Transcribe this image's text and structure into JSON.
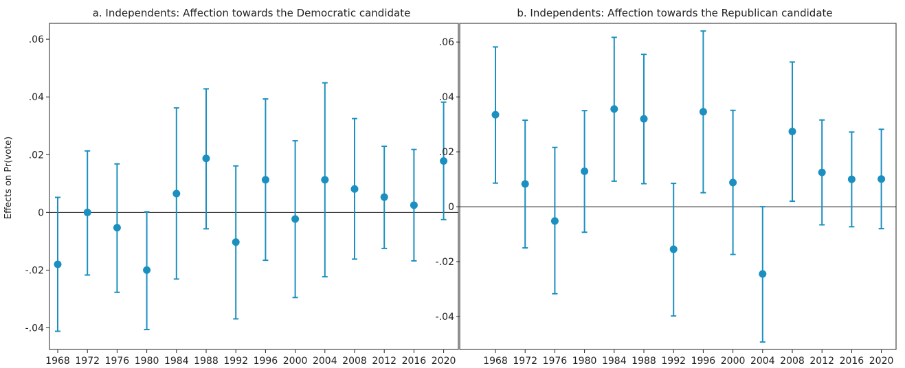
{
  "y_axis_label": "Effects on Pr(vote)",
  "chart_data": [
    {
      "type": "scatter",
      "title": "a. Independents: Affection towards the Democratic candidate",
      "xlabel": "",
      "ylabel": "Effects on Pr(vote)",
      "x": [
        "1968",
        "1972",
        "1976",
        "1980",
        "1984",
        "1988",
        "1992",
        "1996",
        "2000",
        "2004",
        "2008",
        "2012",
        "2016",
        "2020"
      ],
      "series": [
        {
          "values": [
            -0.018,
            0.0,
            -0.0053,
            -0.02,
            0.0065,
            0.0187,
            -0.0103,
            0.0113,
            -0.0023,
            0.0113,
            0.0081,
            0.0053,
            0.0025,
            0.0178
          ],
          "lower": [
            -0.0412,
            -0.0217,
            -0.0277,
            -0.0406,
            -0.0231,
            -0.0057,
            -0.0369,
            -0.0166,
            -0.0295,
            -0.0223,
            -0.0162,
            -0.0125,
            -0.0168,
            -0.0025
          ],
          "upper": [
            0.0052,
            0.0213,
            0.0168,
            0.0002,
            0.0362,
            0.0428,
            0.0161,
            0.0393,
            0.0248,
            0.0449,
            0.0325,
            0.0229,
            0.0218,
            0.0382
          ]
        }
      ],
      "ylim": [
        -0.0475,
        0.0655
      ],
      "yticks": [
        "-.04",
        "-.02",
        "0",
        ".02",
        ".04",
        ".06"
      ],
      "ytick_values": [
        -0.04,
        -0.02,
        0,
        0.02,
        0.04,
        0.06
      ],
      "reference_line": 0,
      "color": "#1b8fc0",
      "grid": false,
      "legend": "none"
    },
    {
      "type": "scatter",
      "title": "b. Independents: Affection towards the Republican candidate",
      "xlabel": "",
      "ylabel": "",
      "x": [
        "1968",
        "1972",
        "1976",
        "1980",
        "1984",
        "1988",
        "1992",
        "1996",
        "2000",
        "2004",
        "2008",
        "2012",
        "2016",
        "2020"
      ],
      "series": [
        {
          "values": [
            0.0335,
            0.0083,
            -0.0052,
            0.0129,
            0.0356,
            0.032,
            -0.0155,
            0.0346,
            0.0088,
            -0.0245,
            0.0274,
            0.0125,
            0.01,
            0.0101
          ],
          "lower": [
            0.0086,
            -0.015,
            -0.0317,
            -0.0093,
            0.0093,
            0.0084,
            -0.0398,
            0.0051,
            -0.0174,
            -0.0493,
            0.002,
            -0.0066,
            -0.0073,
            -0.008
          ],
          "upper": [
            0.0582,
            0.0315,
            0.0216,
            0.035,
            0.0617,
            0.0555,
            0.0085,
            0.064,
            0.0351,
            0.0,
            0.0527,
            0.0316,
            0.0272,
            0.0282
          ]
        }
      ],
      "ylim": [
        -0.052,
        0.0668
      ],
      "yticks": [
        "-.04",
        "-.02",
        "0",
        ".02",
        ".04",
        ".06"
      ],
      "ytick_values": [
        -0.04,
        -0.02,
        0,
        0.02,
        0.04,
        0.06
      ],
      "reference_line": 0,
      "color": "#1b8fc0",
      "grid": false,
      "legend": "none"
    }
  ]
}
